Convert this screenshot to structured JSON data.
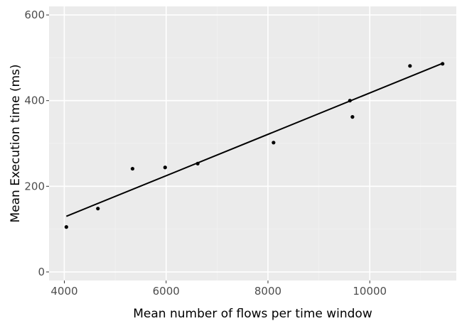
{
  "chart_data": {
    "type": "scatter",
    "title": "",
    "xlabel": "Mean number of flows per time window",
    "ylabel": "Mean Execution time (ms)",
    "xlim": [
      3700,
      11700
    ],
    "ylim": [
      -20,
      620
    ],
    "x_ticks": [
      4000,
      6000,
      8000,
      10000
    ],
    "x_tick_labels": [
      "4000",
      "6000",
      "8000",
      "10000"
    ],
    "y_ticks": [
      0,
      200,
      400,
      600
    ],
    "y_tick_labels": [
      "0",
      "200",
      "400",
      "600"
    ],
    "grid": true,
    "legend": "none",
    "colors": {
      "panel_background": "#ebebeb",
      "grid_major": "#ffffff",
      "grid_minor": "#f2f2f2",
      "points": "#000000",
      "trend_line": "#000000"
    },
    "points": [
      {
        "x": 4040,
        "y": 105
      },
      {
        "x": 4660,
        "y": 148
      },
      {
        "x": 5340,
        "y": 241
      },
      {
        "x": 5980,
        "y": 244
      },
      {
        "x": 6620,
        "y": 253
      },
      {
        "x": 8110,
        "y": 302
      },
      {
        "x": 9610,
        "y": 400
      },
      {
        "x": 9660,
        "y": 362
      },
      {
        "x": 10790,
        "y": 481
      },
      {
        "x": 11430,
        "y": 486
      }
    ],
    "trend_line": {
      "x_start": 4040,
      "y_start": 130,
      "x_end": 11430,
      "y_end": 487
    }
  }
}
